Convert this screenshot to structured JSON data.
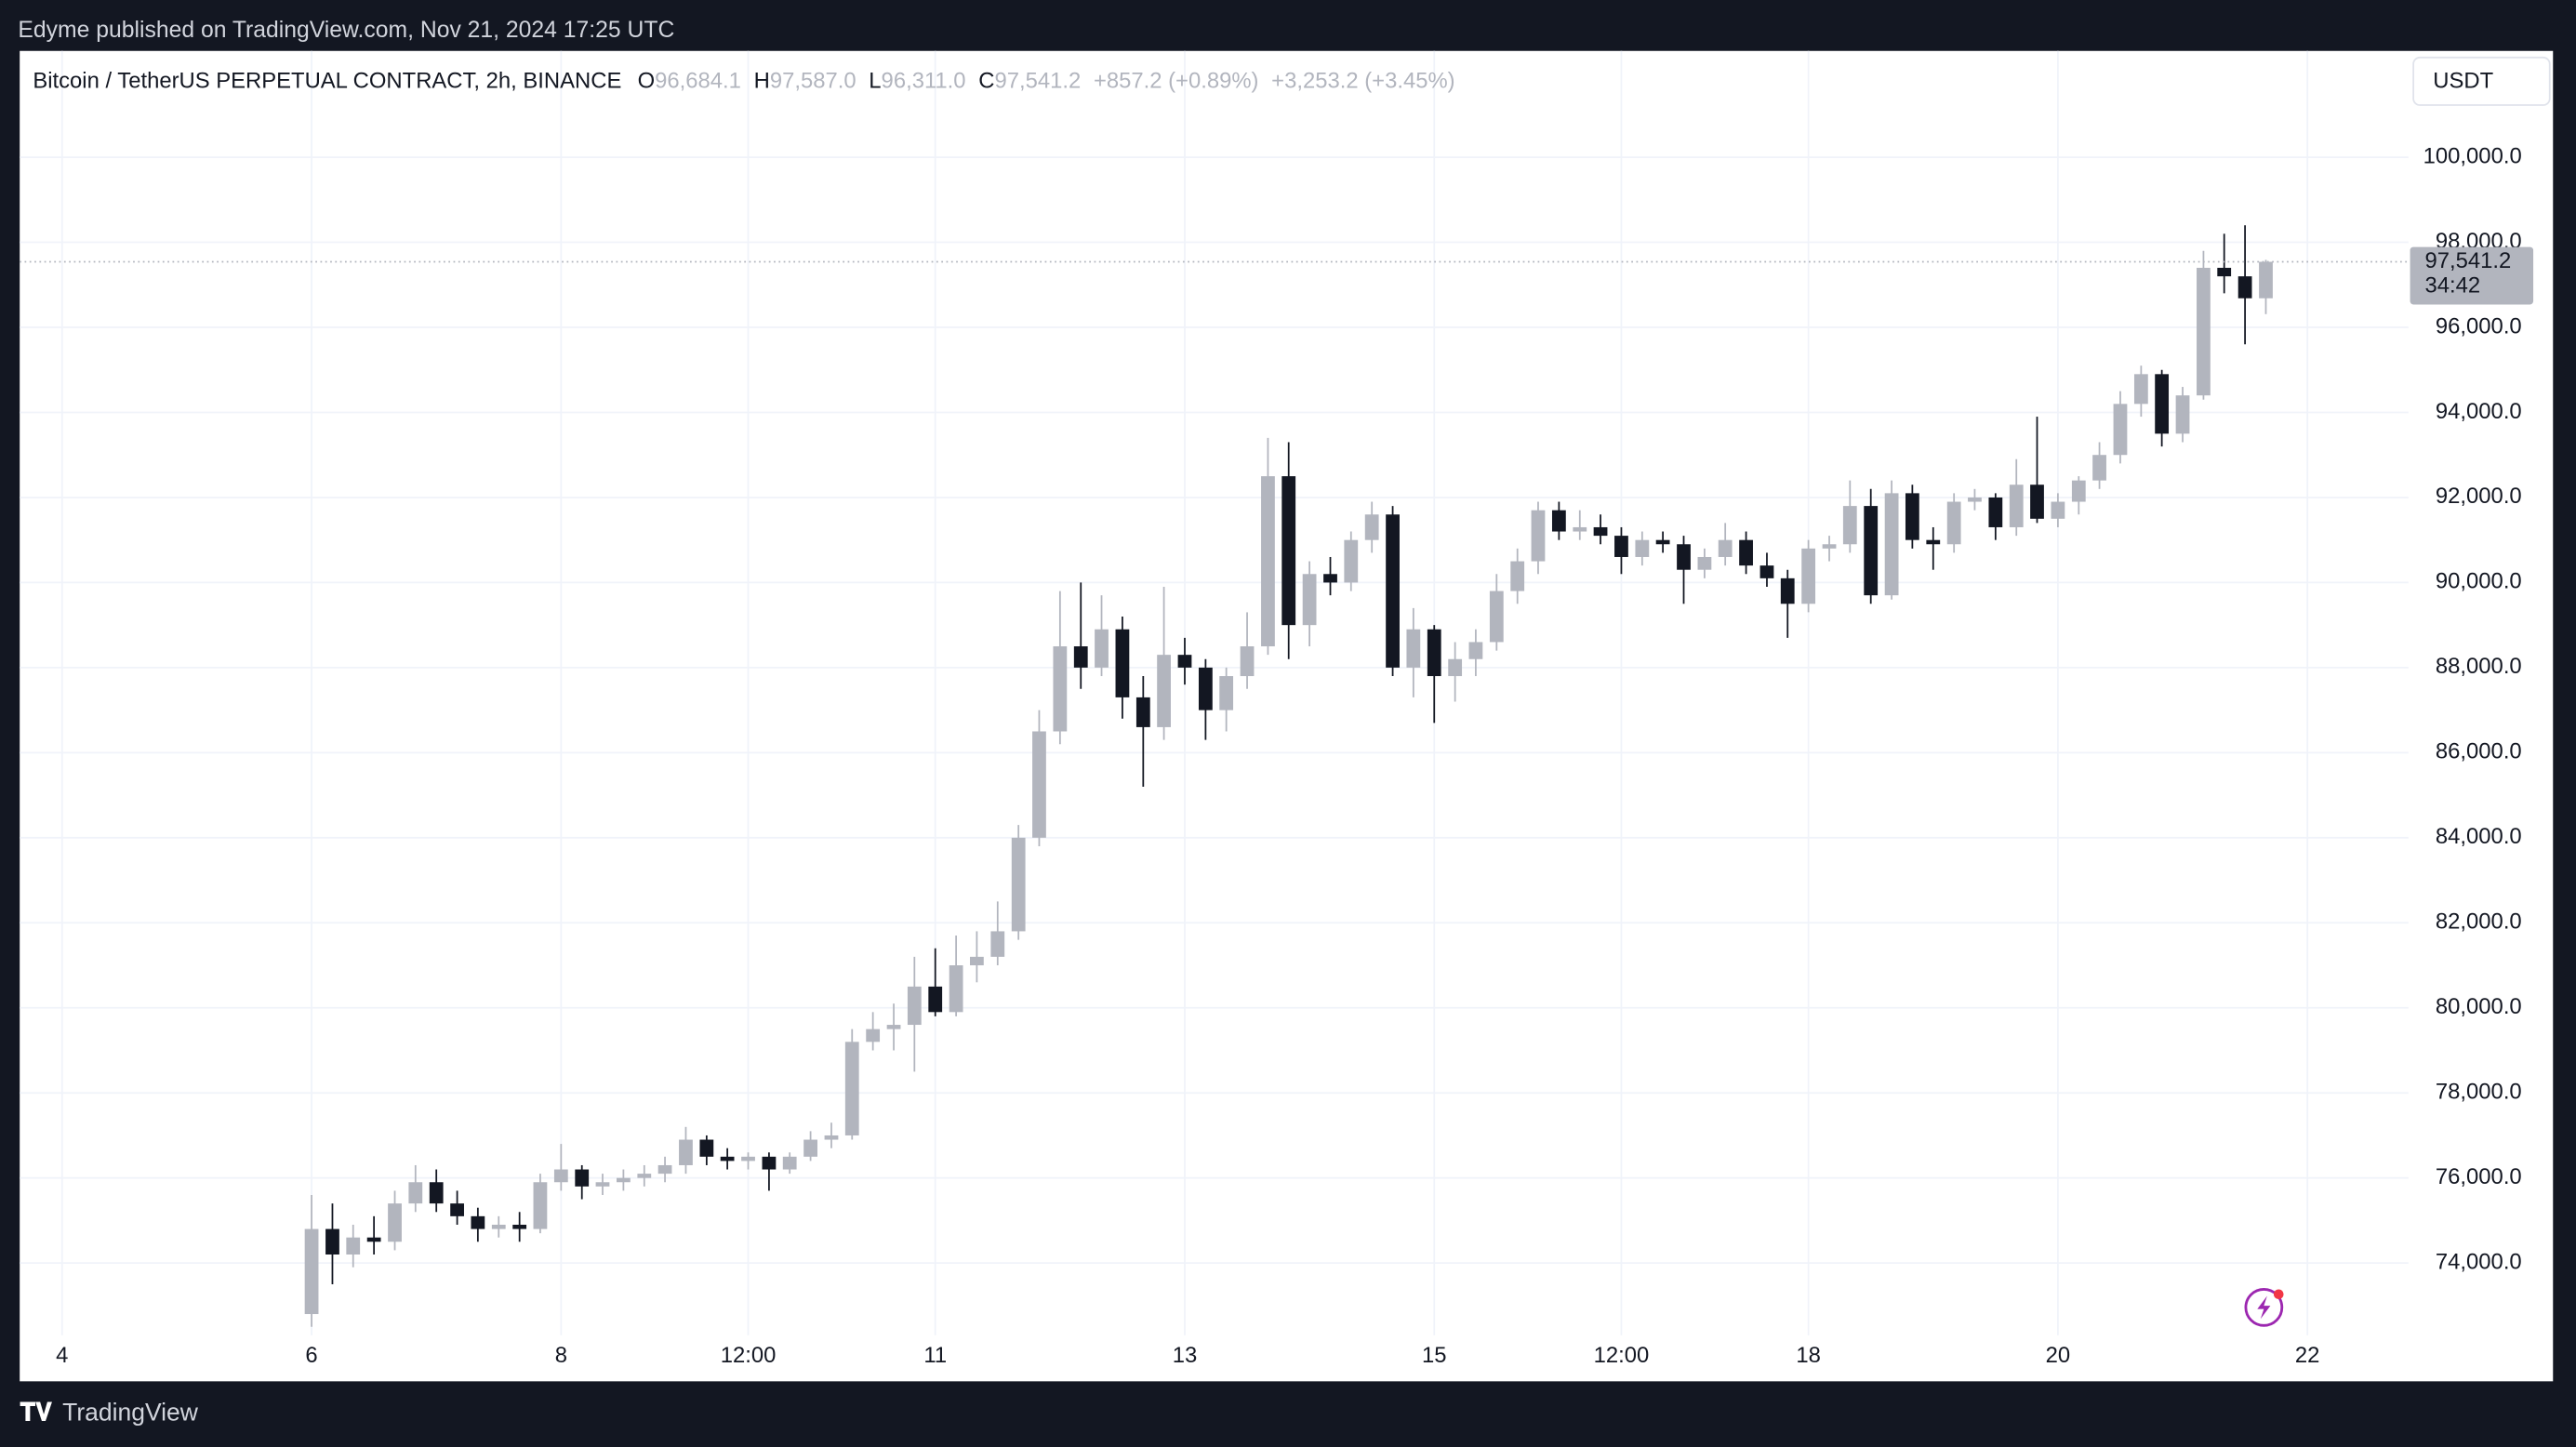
{
  "header": {
    "text": "Edyme published on TradingView.com, Nov 21, 2024 17:25 UTC"
  },
  "footer": {
    "brand": "TradingView"
  },
  "chart_data": {
    "type": "candlestick",
    "legend": {
      "symbol": "Bitcoin / TetherUS PERPETUAL CONTRACT, 2h, BINANCE",
      "open_label": "O",
      "open": "96,684.1",
      "high_label": "H",
      "high": "97,587.0",
      "low_label": "L",
      "low": "96,311.0",
      "close_label": "C",
      "close": "97,541.2",
      "change": "+857.2 (+0.89%)",
      "change_session": "+3,253.2 (+3.45%)"
    },
    "currency": "USDT",
    "last_price": {
      "value": 97541.2,
      "label": "97,541.2"
    },
    "countdown": "34:42",
    "up_color": "#b2b5be",
    "down_color": "#131722",
    "grid": true,
    "xlim": [
      3.66,
      22.81
    ],
    "xticks": [
      {
        "value": 4,
        "label": "4"
      },
      {
        "value": 6,
        "label": "6"
      },
      {
        "value": 8,
        "label": "8"
      },
      {
        "value": 9.5,
        "label": "12:00"
      },
      {
        "value": 11,
        "label": "11"
      },
      {
        "value": 13,
        "label": "13"
      },
      {
        "value": 15,
        "label": "15"
      },
      {
        "value": 16.5,
        "label": "12:00"
      },
      {
        "value": 18,
        "label": "18"
      },
      {
        "value": 20,
        "label": "20"
      },
      {
        "value": 22,
        "label": "22"
      }
    ],
    "ylim": [
      72300,
      102500
    ],
    "yticks": [
      {
        "value": 74000,
        "label": "74,000.0"
      },
      {
        "value": 76000,
        "label": "76,000.0"
      },
      {
        "value": 78000,
        "label": "78,000.0"
      },
      {
        "value": 80000,
        "label": "80,000.0"
      },
      {
        "value": 82000,
        "label": "82,000.0"
      },
      {
        "value": 84000,
        "label": "84,000.0"
      },
      {
        "value": 86000,
        "label": "86,000.0"
      },
      {
        "value": 88000,
        "label": "88,000.0"
      },
      {
        "value": 90000,
        "label": "90,000.0"
      },
      {
        "value": 92000,
        "label": "92,000.0"
      },
      {
        "value": 94000,
        "label": "94,000.0"
      },
      {
        "value": 96000,
        "label": "96,000.0"
      },
      {
        "value": 98000,
        "label": "98,000.0"
      },
      {
        "value": 100000,
        "label": "100,000.0"
      }
    ],
    "x": [
      6,
      6.167,
      6.333,
      6.5,
      6.667,
      6.833,
      7,
      7.167,
      7.333,
      7.5,
      7.667,
      7.833,
      8,
      8.167,
      8.333,
      8.5,
      8.667,
      8.833,
      9,
      9.167,
      9.333,
      9.5,
      9.667,
      9.833,
      10,
      10.167,
      10.333,
      10.5,
      10.667,
      10.833,
      11,
      11.167,
      11.333,
      11.5,
      11.667,
      11.833,
      12,
      12.167,
      12.333,
      12.5,
      12.667,
      12.833,
      13,
      13.167,
      13.333,
      13.5,
      13.667,
      13.833,
      14,
      14.167,
      14.333,
      14.5,
      14.667,
      14.833,
      15,
      15.167,
      15.333,
      15.5,
      15.667,
      15.833,
      16,
      16.167,
      16.333,
      16.5,
      16.667,
      16.833,
      17,
      17.167,
      17.333,
      17.5,
      17.667,
      17.833,
      18,
      18.167,
      18.333,
      18.5,
      18.667,
      18.833,
      19,
      19.167,
      19.333,
      19.5,
      19.667,
      19.833,
      20,
      20.167,
      20.333,
      20.5,
      20.667,
      20.833,
      21,
      21.167,
      21.333,
      21.5,
      21.667
    ],
    "candles": [
      [
        72800,
        75600,
        72500,
        74800
      ],
      [
        74800,
        75400,
        73500,
        74200
      ],
      [
        74200,
        74900,
        73900,
        74600
      ],
      [
        74600,
        75100,
        74200,
        74500
      ],
      [
        74500,
        75700,
        74300,
        75400
      ],
      [
        75400,
        76300,
        75200,
        75900
      ],
      [
        75900,
        76200,
        75200,
        75400
      ],
      [
        75400,
        75700,
        74900,
        75100
      ],
      [
        75100,
        75300,
        74500,
        74800
      ],
      [
        74800,
        75100,
        74600,
        74900
      ],
      [
        74900,
        75200,
        74500,
        74800
      ],
      [
        74800,
        76100,
        74700,
        75900
      ],
      [
        75900,
        76800,
        75700,
        76200
      ],
      [
        76200,
        76300,
        75500,
        75800
      ],
      [
        75800,
        76100,
        75600,
        75900
      ],
      [
        75900,
        76200,
        75700,
        76000
      ],
      [
        76000,
        76300,
        75800,
        76100
      ],
      [
        76100,
        76500,
        75900,
        76300
      ],
      [
        76300,
        77200,
        76100,
        76900
      ],
      [
        76900,
        77000,
        76300,
        76500
      ],
      [
        76500,
        76700,
        76200,
        76400
      ],
      [
        76400,
        76600,
        76200,
        76500
      ],
      [
        76500,
        76600,
        75700,
        76200
      ],
      [
        76200,
        76600,
        76100,
        76500
      ],
      [
        76500,
        77100,
        76400,
        76900
      ],
      [
        76900,
        77300,
        76700,
        77000
      ],
      [
        77000,
        79500,
        76900,
        79200
      ],
      [
        79200,
        79900,
        79000,
        79500
      ],
      [
        79500,
        80100,
        79000,
        79600
      ],
      [
        79600,
        81200,
        78500,
        80500
      ],
      [
        80500,
        81400,
        79800,
        79900
      ],
      [
        79900,
        81700,
        79800,
        81000
      ],
      [
        81000,
        81800,
        80600,
        81200
      ],
      [
        81200,
        82500,
        81000,
        81800
      ],
      [
        81800,
        84300,
        81600,
        84000
      ],
      [
        84000,
        87000,
        83800,
        86500
      ],
      [
        86500,
        89800,
        86200,
        88500
      ],
      [
        88500,
        90000,
        87500,
        88000
      ],
      [
        88000,
        89700,
        87800,
        88900
      ],
      [
        88900,
        89200,
        86800,
        87300
      ],
      [
        87300,
        87800,
        85200,
        86600
      ],
      [
        86600,
        89900,
        86300,
        88300
      ],
      [
        88300,
        88700,
        87600,
        88000
      ],
      [
        88000,
        88200,
        86300,
        87000
      ],
      [
        87000,
        88000,
        86500,
        87800
      ],
      [
        87800,
        89300,
        87500,
        88500
      ],
      [
        88500,
        93400,
        88300,
        92500
      ],
      [
        92500,
        93300,
        88200,
        89000
      ],
      [
        89000,
        90500,
        88500,
        90200
      ],
      [
        90200,
        90600,
        89700,
        90000
      ],
      [
        90000,
        91200,
        89800,
        91000
      ],
      [
        91000,
        91900,
        90700,
        91600
      ],
      [
        91600,
        91800,
        87800,
        88000
      ],
      [
        88000,
        89400,
        87300,
        88900
      ],
      [
        88900,
        89000,
        86700,
        87800
      ],
      [
        87800,
        88600,
        87200,
        88200
      ],
      [
        88200,
        88900,
        87800,
        88600
      ],
      [
        88600,
        90200,
        88400,
        89800
      ],
      [
        89800,
        90800,
        89500,
        90500
      ],
      [
        90500,
        91900,
        90200,
        91700
      ],
      [
        91700,
        91900,
        91000,
        91200
      ],
      [
        91200,
        91700,
        91000,
        91300
      ],
      [
        91300,
        91600,
        90900,
        91100
      ],
      [
        91100,
        91300,
        90200,
        90600
      ],
      [
        90600,
        91200,
        90400,
        91000
      ],
      [
        91000,
        91200,
        90700,
        90900
      ],
      [
        90900,
        91100,
        89500,
        90300
      ],
      [
        90300,
        90800,
        90100,
        90600
      ],
      [
        90600,
        91400,
        90400,
        91000
      ],
      [
        91000,
        91200,
        90200,
        90400
      ],
      [
        90400,
        90700,
        89900,
        90100
      ],
      [
        90100,
        90300,
        88700,
        89500
      ],
      [
        89500,
        91000,
        89300,
        90800
      ],
      [
        90800,
        91100,
        90500,
        90900
      ],
      [
        90900,
        92400,
        90700,
        91800
      ],
      [
        91800,
        92200,
        89500,
        89700
      ],
      [
        89700,
        92400,
        89600,
        92100
      ],
      [
        92100,
        92300,
        90800,
        91000
      ],
      [
        91000,
        91300,
        90300,
        90900
      ],
      [
        90900,
        92100,
        90700,
        91900
      ],
      [
        91900,
        92200,
        91700,
        92000
      ],
      [
        92000,
        92100,
        91000,
        91300
      ],
      [
        91300,
        92900,
        91100,
        92300
      ],
      [
        92300,
        93900,
        91400,
        91500
      ],
      [
        91500,
        92100,
        91300,
        91900
      ],
      [
        91900,
        92500,
        91600,
        92400
      ],
      [
        92400,
        93300,
        92200,
        93000
      ],
      [
        93000,
        94500,
        92800,
        94200
      ],
      [
        94200,
        95100,
        93900,
        94900
      ],
      [
        94900,
        95000,
        93200,
        93500
      ],
      [
        93500,
        94600,
        93300,
        94400
      ],
      [
        94400,
        97800,
        94300,
        97400
      ],
      [
        97400,
        98200,
        96800,
        97200
      ],
      [
        97200,
        98400,
        95600,
        96684.1
      ],
      [
        96684.1,
        97587,
        96311,
        97541.2
      ]
    ]
  }
}
